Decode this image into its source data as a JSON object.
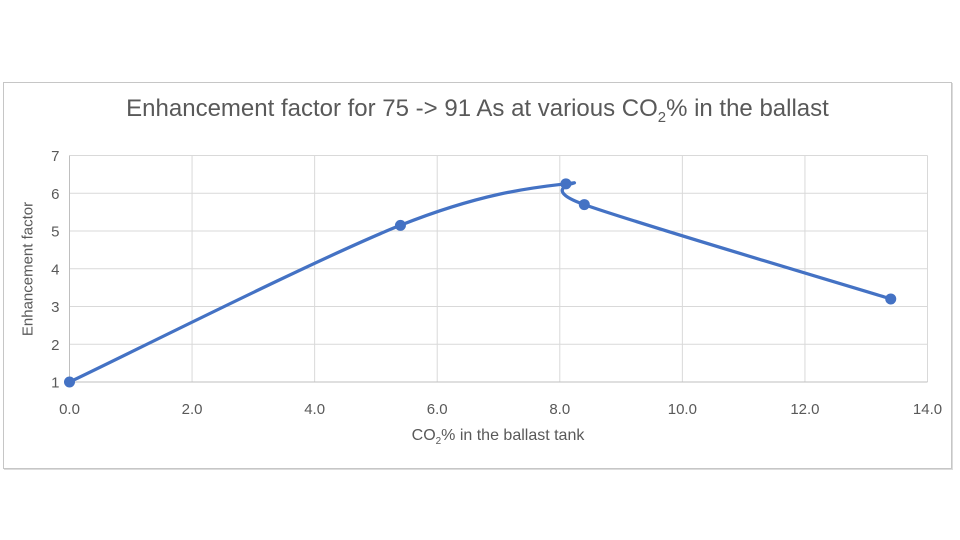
{
  "colors": {
    "series_line": "#4472C4",
    "marker_fill": "#4472C4",
    "gridline": "#D9D9D9",
    "axis_line": "#BFBFBF",
    "text": "#595959",
    "frame_border": "#C6C6C6",
    "background": "#FFFFFF"
  },
  "title": {
    "full": "Enhancement factor for 75 -> 91 As at various CO2% in the ballast",
    "prefix": "Enhancement factor for 75 -> 91 As at various CO",
    "sub": "2",
    "suffix": "% in the ballast"
  },
  "y_axis": {
    "title": "Enhancement factor"
  },
  "x_axis": {
    "title_full": "CO2% in the ballast tank",
    "title_prefix": "CO",
    "title_sub": "2",
    "title_suffix": "% in the ballast tank"
  },
  "chart_data": {
    "type": "line",
    "title": "Enhancement factor for 75 -> 91 As at various CO2% in the ballast",
    "xlabel": "CO2% in the ballast tank",
    "ylabel": "Enhancement factor",
    "xlim": [
      0,
      14
    ],
    "ylim": [
      1,
      7
    ],
    "x_ticks": [
      0,
      2,
      4,
      6,
      8,
      10,
      12,
      14
    ],
    "x_tick_labels": [
      "0.0",
      "2.0",
      "4.0",
      "6.0",
      "8.0",
      "10.0",
      "12.0",
      "14.0"
    ],
    "y_ticks": [
      1,
      2,
      3,
      4,
      5,
      6,
      7
    ],
    "y_tick_labels": [
      "1",
      "2",
      "3",
      "4",
      "5",
      "6",
      "7"
    ],
    "grid": true,
    "legend": false,
    "series": [
      {
        "name": "Enhancement factor",
        "color": "#4472C4",
        "marker": "circle",
        "smooth": true,
        "points": [
          [
            0.0,
            1.0
          ],
          [
            5.4,
            5.15
          ],
          [
            8.1,
            6.25
          ],
          [
            8.4,
            5.7
          ],
          [
            13.4,
            3.2
          ]
        ]
      }
    ]
  }
}
